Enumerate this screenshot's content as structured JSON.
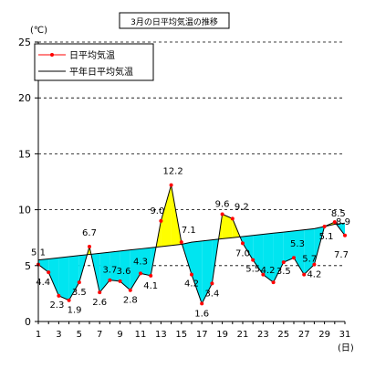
{
  "chart_data": {
    "type": "line",
    "title": "3月の日平均気温の推移",
    "y_unit": "(℃)",
    "x_unit": "(日)",
    "x": [
      1,
      2,
      3,
      4,
      5,
      6,
      7,
      8,
      9,
      10,
      11,
      12,
      13,
      14,
      15,
      16,
      17,
      18,
      19,
      20,
      21,
      22,
      23,
      24,
      25,
      26,
      27,
      28,
      29,
      30,
      31
    ],
    "xlim": [
      1,
      31
    ],
    "ylim": [
      0,
      25
    ],
    "y_ticks": [
      0,
      5,
      10,
      15,
      20,
      25
    ],
    "x_ticks": [
      1,
      3,
      5,
      7,
      9,
      11,
      13,
      15,
      17,
      19,
      21,
      23,
      25,
      27,
      29,
      31
    ],
    "grid": "horizontal dashed",
    "legend_position": "top-left",
    "series": [
      {
        "name": "日平均気温",
        "color": "#ff0000",
        "values": [
          5.1,
          4.4,
          2.3,
          1.9,
          3.5,
          6.7,
          2.6,
          3.7,
          3.6,
          2.8,
          4.3,
          4.1,
          9.0,
          12.2,
          7.1,
          4.2,
          1.6,
          3.4,
          9.6,
          9.2,
          7.0,
          5.5,
          4.2,
          3.5,
          5.3,
          5.7,
          4.2,
          5.1,
          8.5,
          8.9,
          7.7
        ]
      },
      {
        "name": "平年日平均気温",
        "color": "#000000",
        "values": [
          5.5,
          5.6,
          5.7,
          5.8,
          5.9,
          6.0,
          6.1,
          6.2,
          6.3,
          6.4,
          6.5,
          6.6,
          6.7,
          6.8,
          6.9,
          7.1,
          7.2,
          7.3,
          7.4,
          7.5,
          7.6,
          7.7,
          7.8,
          7.9,
          8.0,
          8.1,
          8.2,
          8.3,
          8.5,
          8.7,
          8.8
        ]
      }
    ],
    "data_labels": [
      {
        "day": 1,
        "text": "5.1"
      },
      {
        "day": 2,
        "text": "4.4"
      },
      {
        "day": 3,
        "text": "2.3"
      },
      {
        "day": 4,
        "text": "1.9"
      },
      {
        "day": 5,
        "text": "3.5"
      },
      {
        "day": 6,
        "text": "6.7"
      },
      {
        "day": 7,
        "text": "2.6"
      },
      {
        "day": 8,
        "text": "3.7"
      },
      {
        "day": 9,
        "text": "3.6"
      },
      {
        "day": 10,
        "text": "2.8"
      },
      {
        "day": 11,
        "text": "4.3"
      },
      {
        "day": 12,
        "text": "4.1"
      },
      {
        "day": 13,
        "text": "9.0"
      },
      {
        "day": 14,
        "text": "12.2"
      },
      {
        "day": 15,
        "text": "7.1"
      },
      {
        "day": 16,
        "text": "4.2"
      },
      {
        "day": 17,
        "text": "1.6"
      },
      {
        "day": 18,
        "text": "3.4"
      },
      {
        "day": 19,
        "text": "9.6"
      },
      {
        "day": 20,
        "text": "9.2"
      },
      {
        "day": 21,
        "text": "7.0"
      },
      {
        "day": 22,
        "text": "5.5"
      },
      {
        "day": 24,
        "text": "4.2"
      },
      {
        "day": 25,
        "text": "3.5"
      },
      {
        "day": 26,
        "text": "5.3"
      },
      {
        "day": 27,
        "text": "5.7"
      },
      {
        "day": 28,
        "text": "4.2"
      },
      {
        "day": 29,
        "text": "5.1"
      },
      {
        "day": 30,
        "text": "8.5"
      },
      {
        "day": 31,
        "text": "8.9"
      },
      {
        "day": 31.5,
        "text": "7.7"
      }
    ],
    "fill_colors": {
      "below_normal": "#00e5f0",
      "above_normal": "#ffff00"
    }
  }
}
